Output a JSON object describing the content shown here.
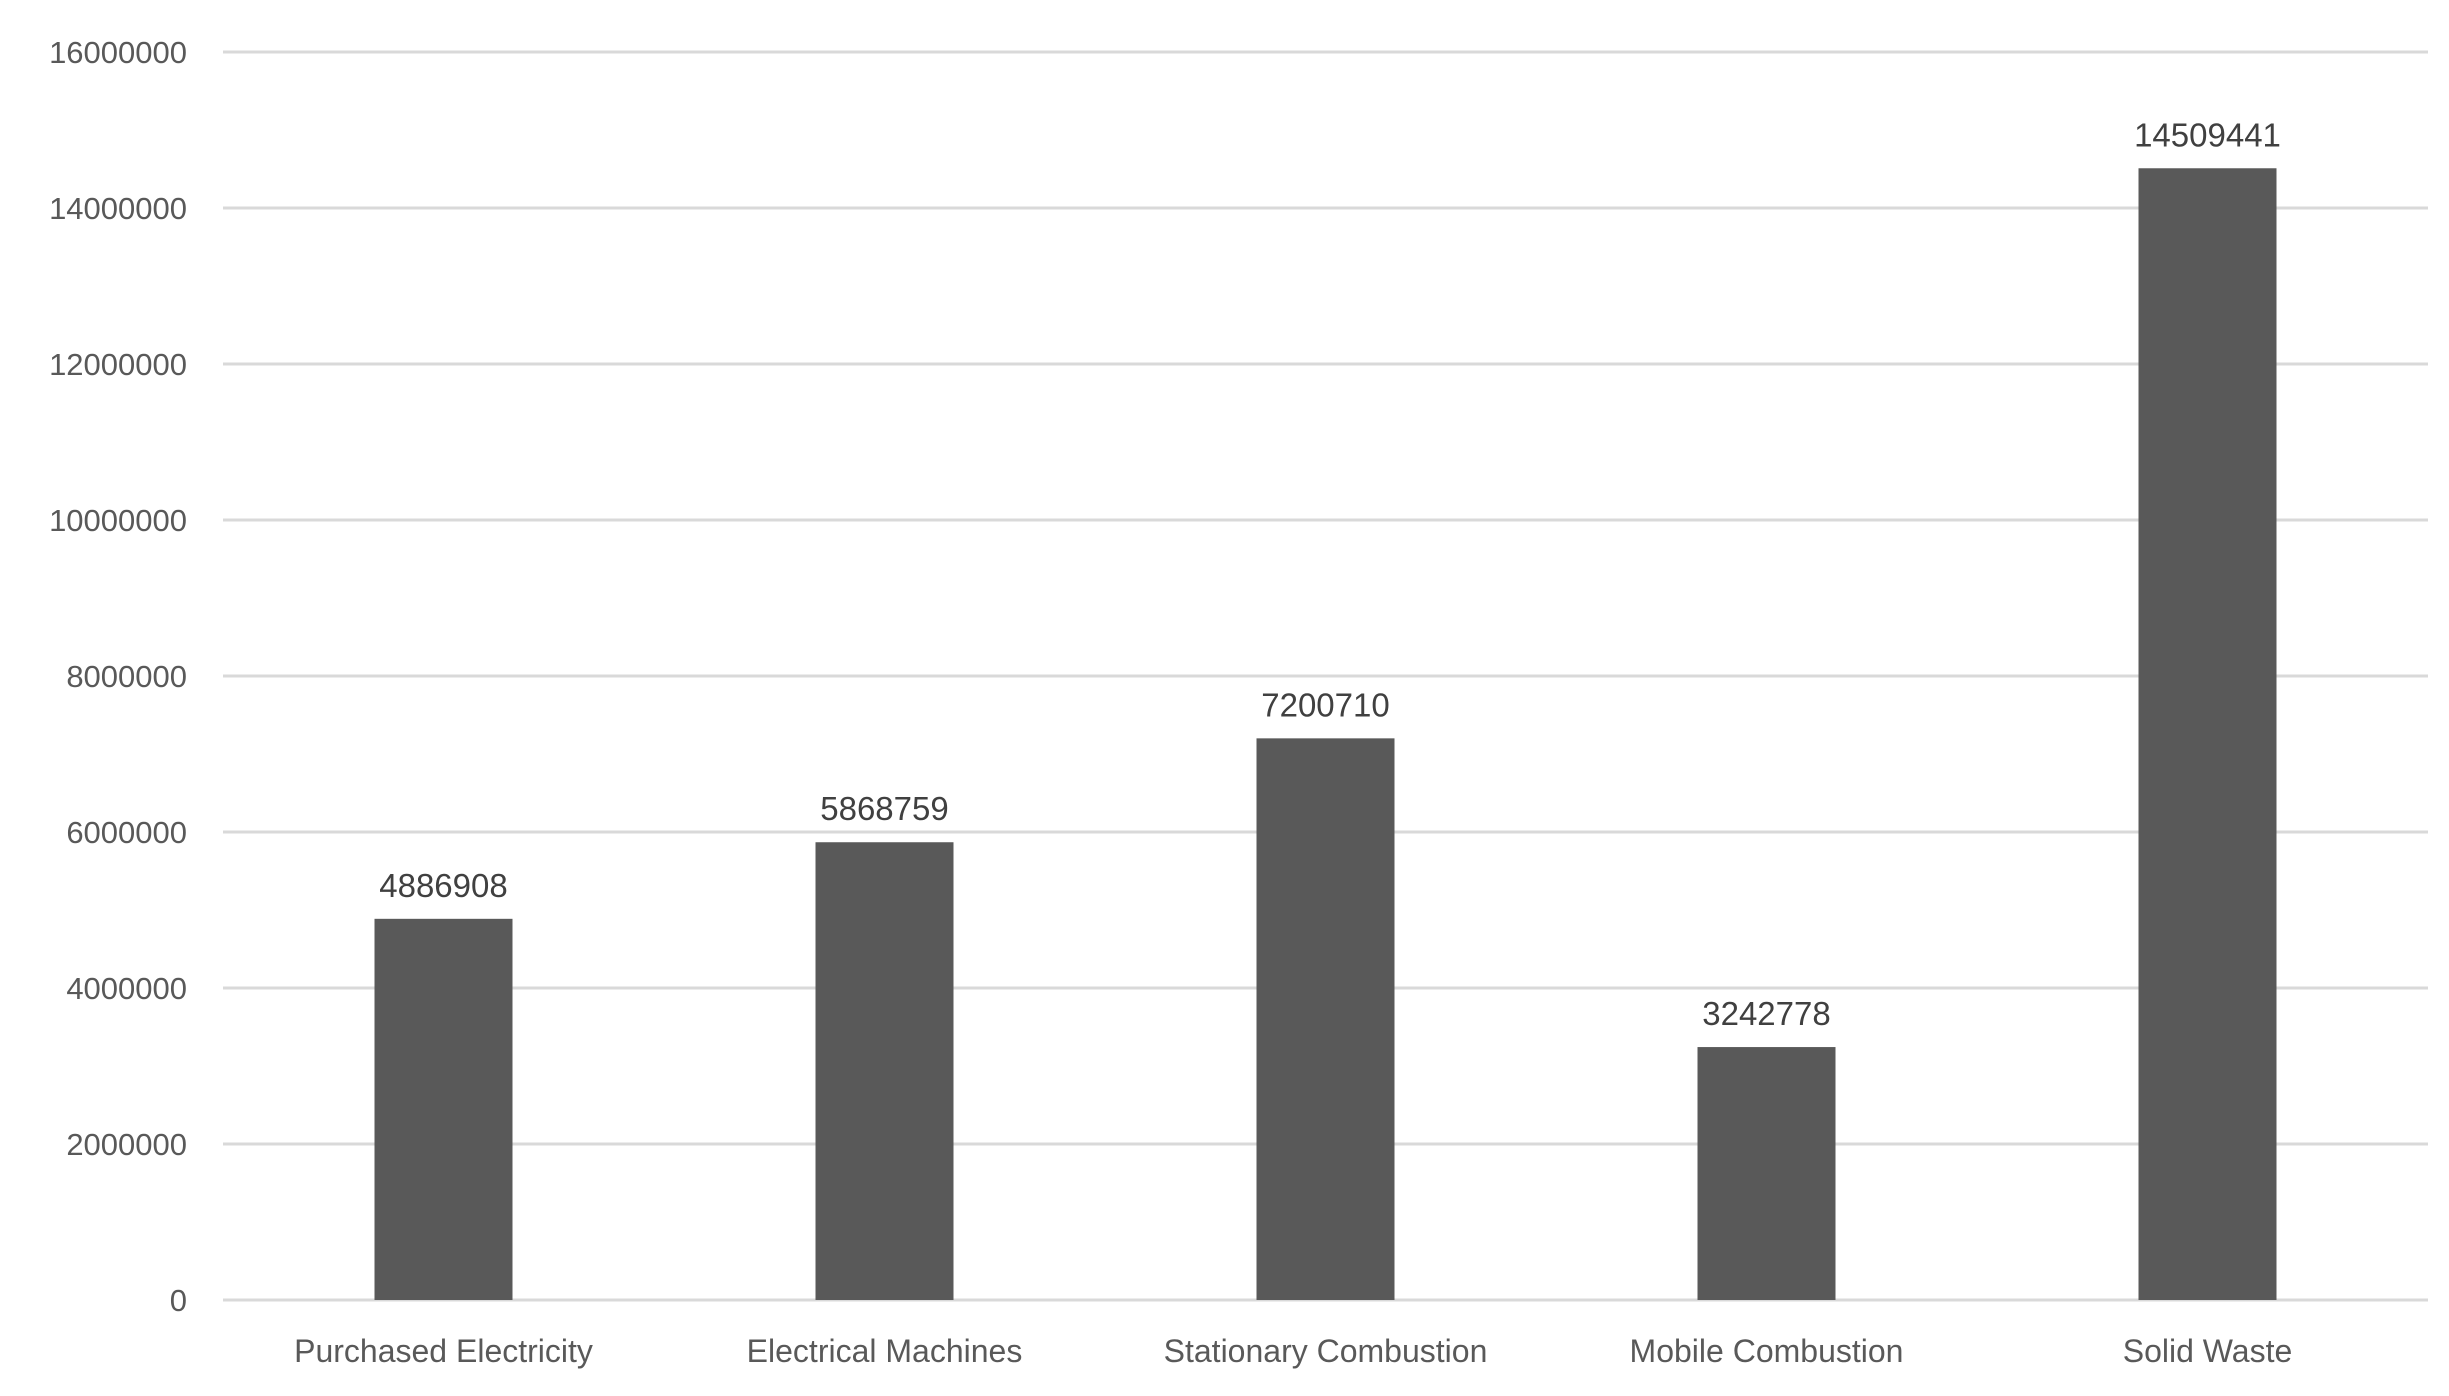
{
  "chart_data": {
    "type": "bar",
    "title": "",
    "xlabel": "",
    "ylabel": "",
    "categories": [
      "Purchased Electricity",
      "Electrical Machines",
      "Stationary Combustion",
      "Mobile Combustion",
      "Solid Waste"
    ],
    "values": [
      4886908,
      5868759,
      7200710,
      3242778,
      14509441
    ],
    "data_labels": [
      "4886908",
      "5868759",
      "7200710",
      "3242778",
      "14509441"
    ],
    "ylim": [
      0,
      16000000
    ],
    "yticks": [
      0,
      2000000,
      4000000,
      6000000,
      8000000,
      10000000,
      12000000,
      14000000,
      16000000
    ],
    "ytick_labels": [
      "0",
      "2000000",
      "4000000",
      "6000000",
      "8000000",
      "10000000",
      "12000000",
      "14000000",
      "16000000"
    ],
    "grid": true,
    "legend": "none",
    "colors": {
      "bar": "#595959",
      "grid": "#d9d9d9",
      "tick_text": "#595959",
      "label_text": "#404040",
      "background": "#ffffff"
    }
  }
}
